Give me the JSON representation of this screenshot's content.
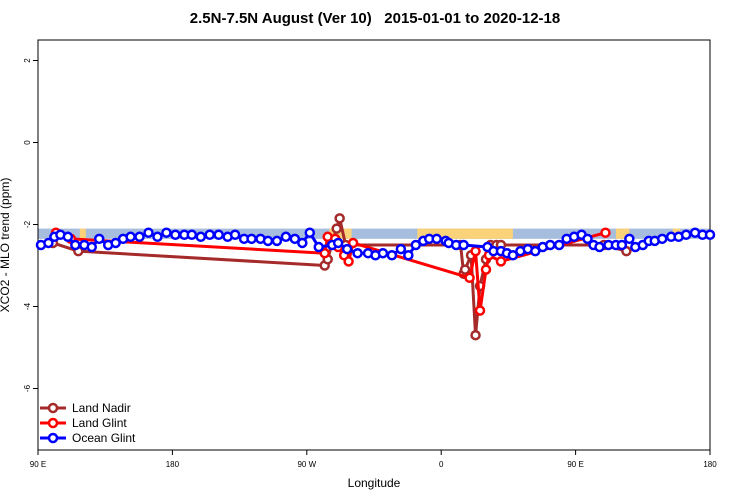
{
  "chart_data": {
    "type": "line",
    "title": "2.5N-7.5N August (Ver 10)   2015-01-01 to 2020-12-18",
    "xlabel": "Longitude",
    "ylabel": "XCO2 - MLO trend (ppm)",
    "x_ticks": [
      {
        "value": 90,
        "label": "90 E"
      },
      {
        "value": 180,
        "label": "180"
      },
      {
        "value": 270,
        "label": "90 W"
      },
      {
        "value": 360,
        "label": "0"
      },
      {
        "value": 450,
        "label": "90 E"
      },
      {
        "value": 540,
        "label": "180"
      }
    ],
    "y_ticks": [
      {
        "value": 2,
        "label": "2"
      },
      {
        "value": 0,
        "label": "0"
      },
      {
        "value": -2,
        "label": "-2"
      },
      {
        "value": -4,
        "label": "-4"
      },
      {
        "value": -6,
        "label": "-6"
      }
    ],
    "xlim": [
      90,
      540
    ],
    "ylim": [
      -7.5,
      2.5
    ],
    "land_band": {
      "top": -2.1,
      "bottom": -2.35,
      "ocean_color": "#a7bddd",
      "land_color": "#f9d27a",
      "land_segments": [
        [
          118,
          122
        ],
        [
          285,
          300
        ],
        [
          344,
          408
        ],
        [
          477,
          486
        ],
        [
          515,
          520
        ]
      ]
    },
    "legend_position": "bottom-left",
    "series": [
      {
        "name": "Land Nadir",
        "color": "#a52a2a",
        "x": [
          100,
          117,
          282,
          284,
          287,
          290,
          292,
          296,
          373,
          375,
          376,
          380,
          383,
          386,
          390,
          393,
          397,
          400,
          469,
          484
        ],
        "y": [
          -2.45,
          -2.65,
          -3.0,
          -2.85,
          -2.45,
          -2.1,
          -1.85,
          -2.5,
          -2.5,
          -3.2,
          -3.1,
          -2.75,
          -4.7,
          -3.5,
          -2.85,
          -2.5,
          -2.5,
          -2.5,
          -2.5,
          -2.65
        ]
      },
      {
        "name": "Land Glint",
        "color": "#ff0000",
        "x": [
          102,
          112,
          282,
          284,
          289,
          291,
          295,
          298,
          301,
          379,
          383,
          386,
          390,
          392,
          400,
          470
        ],
        "y": [
          -2.2,
          -2.35,
          -2.7,
          -2.3,
          -2.35,
          -2.55,
          -2.75,
          -2.9,
          -2.45,
          -3.3,
          -2.65,
          -4.1,
          -3.1,
          -2.75,
          -2.9,
          -2.2
        ]
      },
      {
        "name": "Ocean Glint",
        "color": "#0000ff",
        "x": [
          92,
          97,
          101,
          105,
          110,
          115,
          121,
          126,
          131,
          137,
          142,
          147,
          152,
          158,
          164,
          170,
          176,
          182,
          188,
          193,
          199,
          205,
          211,
          217,
          222,
          228,
          233,
          239,
          244,
          250,
          256,
          262,
          267,
          272,
          278,
          287,
          291,
          297,
          304,
          311,
          316,
          321,
          327,
          333,
          338,
          343,
          348,
          352,
          357,
          363,
          365,
          370,
          375,
          391,
          395,
          400,
          404,
          408,
          413,
          418,
          423,
          428,
          433,
          439,
          444,
          449,
          454,
          458,
          462,
          466,
          472,
          477,
          481,
          486,
          490,
          495,
          499,
          503,
          508,
          514,
          519,
          524,
          530,
          535,
          540
        ],
        "y": [
          -2.5,
          -2.45,
          -2.3,
          -2.25,
          -2.3,
          -2.5,
          -2.5,
          -2.55,
          -2.35,
          -2.5,
          -2.45,
          -2.35,
          -2.3,
          -2.3,
          -2.2,
          -2.3,
          -2.2,
          -2.25,
          -2.25,
          -2.25,
          -2.3,
          -2.25,
          -2.25,
          -2.3,
          -2.25,
          -2.35,
          -2.35,
          -2.35,
          -2.4,
          -2.4,
          -2.3,
          -2.35,
          -2.45,
          -2.2,
          -2.55,
          -2.5,
          -2.45,
          -2.6,
          -2.7,
          -2.7,
          -2.75,
          -2.7,
          -2.75,
          -2.6,
          -2.75,
          -2.5,
          -2.4,
          -2.35,
          -2.35,
          -2.4,
          -2.45,
          -2.5,
          -2.5,
          -2.55,
          -2.65,
          -2.65,
          -2.7,
          -2.75,
          -2.65,
          -2.6,
          -2.65,
          -2.55,
          -2.5,
          -2.5,
          -2.35,
          -2.3,
          -2.25,
          -2.35,
          -2.5,
          -2.55,
          -2.5,
          -2.5,
          -2.5,
          -2.35,
          -2.55,
          -2.5,
          -2.4,
          -2.4,
          -2.35,
          -2.3,
          -2.3,
          -2.25,
          -2.2,
          -2.25,
          -2.25
        ]
      }
    ]
  }
}
